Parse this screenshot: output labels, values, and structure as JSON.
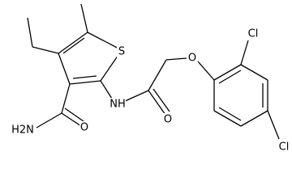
{
  "atoms": [
    {
      "label": "S"
    },
    {
      "label": "NH"
    },
    {
      "label": "O"
    },
    {
      "label": "O"
    },
    {
      "label": "Cl"
    },
    {
      "label": "Cl"
    },
    {
      "label": "H2N"
    },
    {
      "label": "O"
    }
  ]
}
